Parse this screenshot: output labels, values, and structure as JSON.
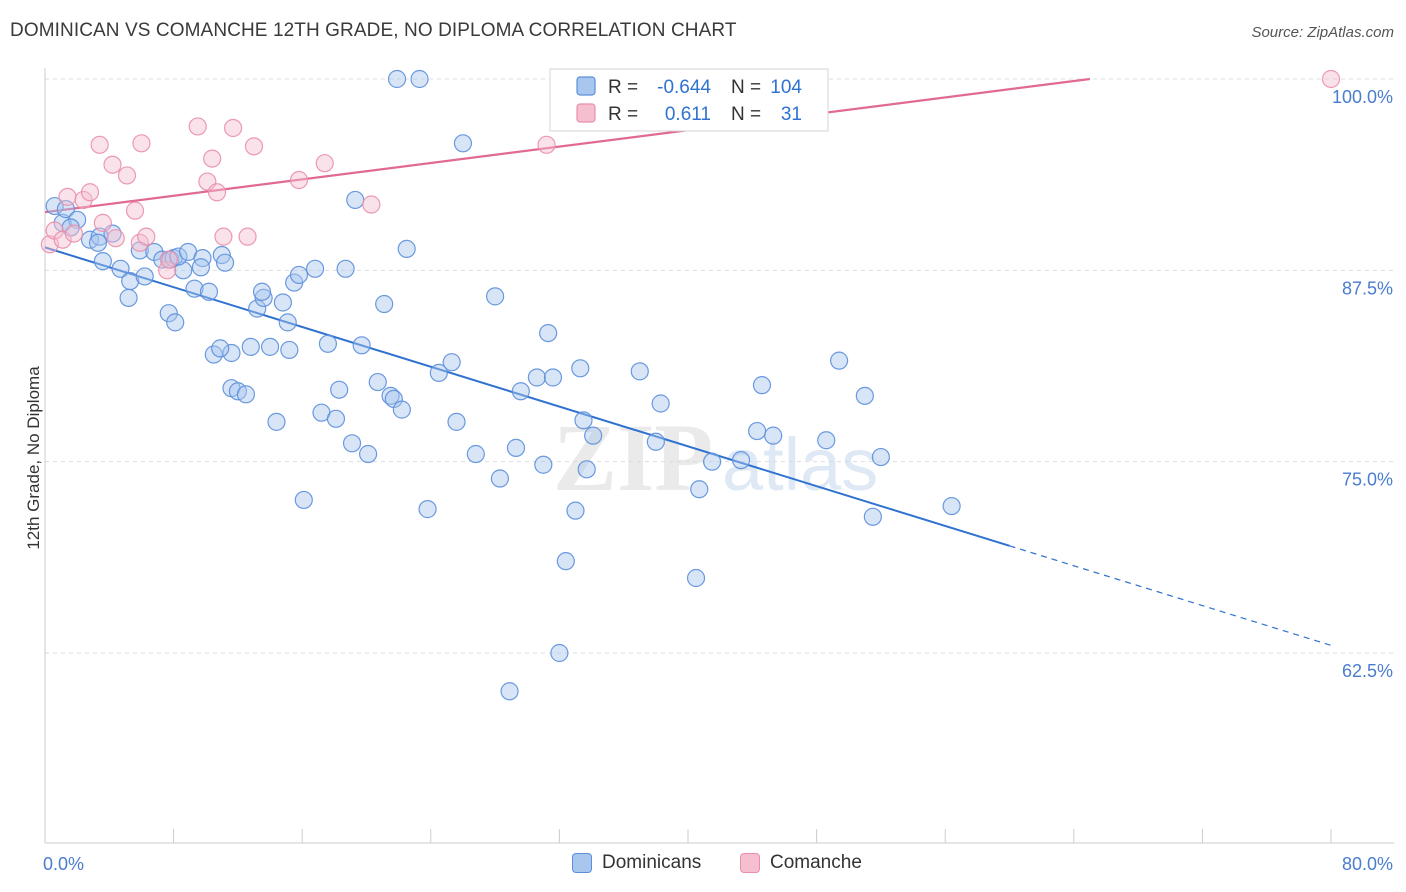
{
  "title": "DOMINICAN VS COMANCHE 12TH GRADE, NO DIPLOMA CORRELATION CHART",
  "source": "Source: ZipAtlas.com",
  "watermark": {
    "zip": "ZIP",
    "atlas": "atlas"
  },
  "legend_top": [
    {
      "r_label": "R =",
      "r_value": "-0.644",
      "n_label": "N =",
      "n_value": "104"
    },
    {
      "r_label": "R =",
      "r_value": "0.611",
      "n_label": "N =",
      "n_value": "31"
    }
  ],
  "legend_bottom": [
    "Dominicans",
    "Comanche"
  ],
  "colors": {
    "blue": "#5b8fdc",
    "blue_fill": "#a9c6ee",
    "blue_line": "#2f72d0",
    "pink": "#ea8fab",
    "pink_fill": "#f5bfd0",
    "pink_line": "#e06a93",
    "tick_text": "#4a7ccf",
    "grid": "#dddddd"
  },
  "chart_data": {
    "type": "scatter",
    "title": "DOMINICAN VS COMANCHE 12TH GRADE, NO DIPLOMA CORRELATION CHART",
    "xlabel": "",
    "ylabel": "12th Grade, No Diploma",
    "xlim": [
      0,
      80
    ],
    "ylim": [
      52,
      101
    ],
    "x_tick_labels": [
      "0.0%",
      "80.0%"
    ],
    "y_ticks": [
      62.5,
      75.0,
      87.5,
      100.0
    ],
    "y_tick_labels": [
      "62.5%",
      "75.0%",
      "87.5%",
      "100.0%"
    ],
    "series": [
      {
        "name": "Dominicans",
        "r": -0.644,
        "n": 104,
        "trend": {
          "x0": 0,
          "y0": 89.0,
          "x1": 60,
          "y1": 69.5,
          "dash_to_x": 80,
          "dash_to_y": 63.0
        },
        "points": [
          [
            0.6,
            91.7
          ],
          [
            1.1,
            90.6
          ],
          [
            1.3,
            91.5
          ],
          [
            2.0,
            90.8
          ],
          [
            1.6,
            90.3
          ],
          [
            2.8,
            89.5
          ],
          [
            3.4,
            89.7
          ],
          [
            4.2,
            89.9
          ],
          [
            3.3,
            89.3
          ],
          [
            3.6,
            88.1
          ],
          [
            4.7,
            87.6
          ],
          [
            5.3,
            86.8
          ],
          [
            5.2,
            85.7
          ],
          [
            5.9,
            88.8
          ],
          [
            6.2,
            87.1
          ],
          [
            6.8,
            88.7
          ],
          [
            7.3,
            88.2
          ],
          [
            7.7,
            84.7
          ],
          [
            7.8,
            88.2
          ],
          [
            8.0,
            88.3
          ],
          [
            8.1,
            84.1
          ],
          [
            8.6,
            87.5
          ],
          [
            8.3,
            88.4
          ],
          [
            8.9,
            88.7
          ],
          [
            9.3,
            86.3
          ],
          [
            9.8,
            88.3
          ],
          [
            9.7,
            87.7
          ],
          [
            10.2,
            86.1
          ],
          [
            11.0,
            88.5
          ],
          [
            10.5,
            82.0
          ],
          [
            11.2,
            88.0
          ],
          [
            11.6,
            82.1
          ],
          [
            10.9,
            82.4
          ],
          [
            11.6,
            79.8
          ],
          [
            12.0,
            79.6
          ],
          [
            12.5,
            79.4
          ],
          [
            12.8,
            82.5
          ],
          [
            13.2,
            85.0
          ],
          [
            13.6,
            85.7
          ],
          [
            13.5,
            86.1
          ],
          [
            14.0,
            82.5
          ],
          [
            14.4,
            77.6
          ],
          [
            15.1,
            84.1
          ],
          [
            15.2,
            82.3
          ],
          [
            15.5,
            86.7
          ],
          [
            15.8,
            87.2
          ],
          [
            16.1,
            72.5
          ],
          [
            16.8,
            87.6
          ],
          [
            17.2,
            78.2
          ],
          [
            17.6,
            82.7
          ],
          [
            18.1,
            77.8
          ],
          [
            18.3,
            79.7
          ],
          [
            18.7,
            87.6
          ],
          [
            19.1,
            76.2
          ],
          [
            19.3,
            92.1
          ],
          [
            19.7,
            82.6
          ],
          [
            20.1,
            75.5
          ],
          [
            20.7,
            80.2
          ],
          [
            21.1,
            85.3
          ],
          [
            21.5,
            79.3
          ],
          [
            21.7,
            79.1
          ],
          [
            22.2,
            78.4
          ],
          [
            21.9,
            100.0
          ],
          [
            22.5,
            88.9
          ],
          [
            23.3,
            100.0
          ],
          [
            23.8,
            71.9
          ],
          [
            24.5,
            80.8
          ],
          [
            25.3,
            81.5
          ],
          [
            25.6,
            77.6
          ],
          [
            26.0,
            95.8
          ],
          [
            26.8,
            75.5
          ],
          [
            28.0,
            85.8
          ],
          [
            28.3,
            73.9
          ],
          [
            29.3,
            75.9
          ],
          [
            29.6,
            79.6
          ],
          [
            30.6,
            80.5
          ],
          [
            31.0,
            74.8
          ],
          [
            31.3,
            83.4
          ],
          [
            31.6,
            80.5
          ],
          [
            32.0,
            62.5
          ],
          [
            32.4,
            68.5
          ],
          [
            33.0,
            71.8
          ],
          [
            33.3,
            81.1
          ],
          [
            33.5,
            77.7
          ],
          [
            33.7,
            74.5
          ],
          [
            34.1,
            76.7
          ],
          [
            37.0,
            80.9
          ],
          [
            38.0,
            76.3
          ],
          [
            38.3,
            78.8
          ],
          [
            40.5,
            67.4
          ],
          [
            40.7,
            73.2
          ],
          [
            41.5,
            75.0
          ],
          [
            43.3,
            75.1
          ],
          [
            44.3,
            77.0
          ],
          [
            44.6,
            80.0
          ],
          [
            45.3,
            76.7
          ],
          [
            48.6,
            76.4
          ],
          [
            49.4,
            81.6
          ],
          [
            51.0,
            79.3
          ],
          [
            51.5,
            71.4
          ],
          [
            52.0,
            75.3
          ],
          [
            56.4,
            72.1
          ],
          [
            28.9,
            60.0
          ],
          [
            14.8,
            85.4
          ]
        ]
      },
      {
        "name": "Comanche",
        "r": 0.611,
        "n": 31,
        "trend": {
          "x0": 0,
          "y0": 91.3,
          "x1": 65,
          "y1": 100.0
        },
        "points": [
          [
            0.3,
            89.2
          ],
          [
            0.6,
            90.1
          ],
          [
            1.1,
            89.5
          ],
          [
            1.4,
            92.3
          ],
          [
            1.8,
            89.9
          ],
          [
            2.4,
            92.1
          ],
          [
            2.8,
            92.6
          ],
          [
            3.6,
            90.6
          ],
          [
            3.4,
            95.7
          ],
          [
            4.2,
            94.4
          ],
          [
            4.4,
            89.6
          ],
          [
            5.1,
            93.7
          ],
          [
            5.6,
            91.4
          ],
          [
            5.9,
            89.3
          ],
          [
            6.3,
            89.7
          ],
          [
            7.6,
            87.5
          ],
          [
            7.7,
            88.2
          ],
          [
            9.5,
            96.9
          ],
          [
            10.1,
            93.3
          ],
          [
            10.4,
            94.8
          ],
          [
            10.7,
            92.6
          ],
          [
            11.1,
            89.7
          ],
          [
            11.7,
            96.8
          ],
          [
            12.6,
            89.7
          ],
          [
            13.0,
            95.6
          ],
          [
            15.8,
            93.4
          ],
          [
            17.4,
            94.5
          ],
          [
            20.3,
            91.8
          ],
          [
            31.2,
            95.7
          ],
          [
            80.0,
            100.0
          ],
          [
            6.0,
            95.8
          ]
        ]
      }
    ]
  }
}
